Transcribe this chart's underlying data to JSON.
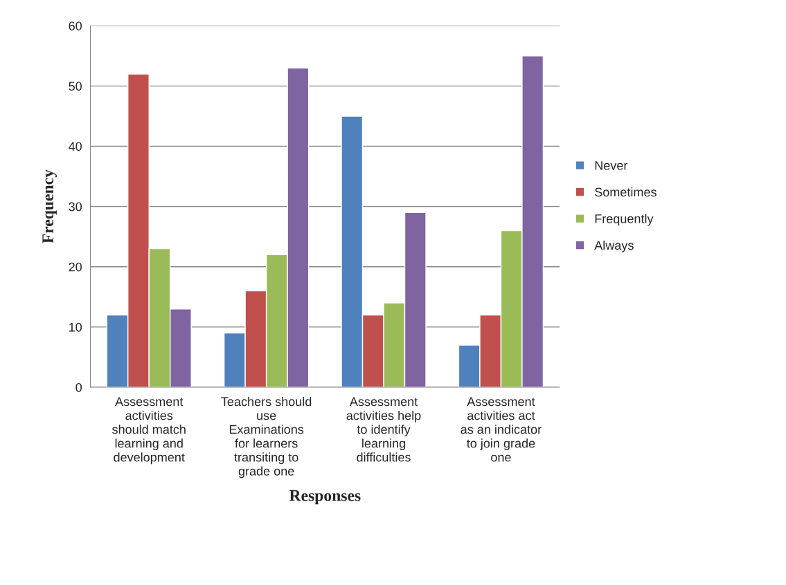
{
  "chart_data": {
    "type": "bar",
    "xlabel": "Responses",
    "ylabel": "Frequency",
    "categories": [
      "Assessment activities should match learning and development",
      "Teachers should use Examinations for learners transiting to grade one",
      "Assessment activities help to identify learning difficulties",
      "Assessment activities act as an indicator to join grade one"
    ],
    "series": [
      {
        "name": "Never",
        "color": "#4f81bd",
        "values": [
          12,
          9,
          45,
          7
        ]
      },
      {
        "name": "Sometimes",
        "color": "#c0504d",
        "values": [
          52,
          16,
          12,
          12
        ]
      },
      {
        "name": "Frequently",
        "color": "#9bbb59",
        "values": [
          23,
          22,
          14,
          26
        ]
      },
      {
        "name": "Always",
        "color": "#8064a2",
        "values": [
          13,
          53,
          29,
          55
        ]
      }
    ],
    "ylim": [
      0,
      60
    ],
    "yticks": [
      0,
      10,
      20,
      30,
      40,
      50,
      60
    ],
    "grid": "y",
    "legend": "right"
  }
}
